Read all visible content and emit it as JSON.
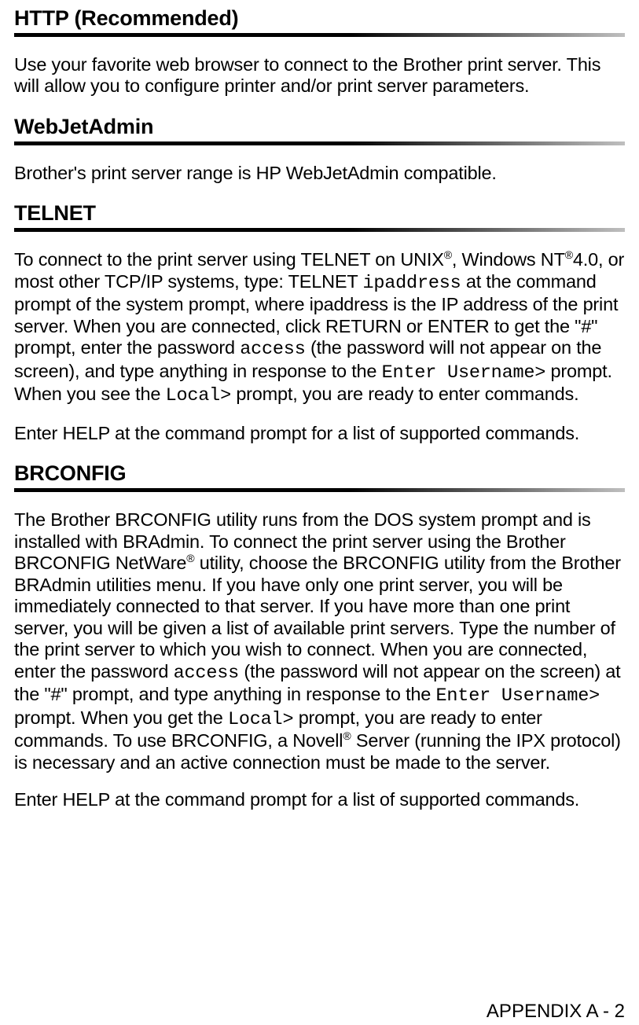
{
  "sections": {
    "http": {
      "heading": "HTTP (Recommended)",
      "p1": "Use your favorite web browser to connect to the Brother print server. This will allow you to configure printer and/or print server parameters."
    },
    "webjet": {
      "heading": "WebJetAdmin",
      "p1": "Brother's print server range is HP WebJetAdmin compatible."
    },
    "telnet": {
      "heading": "TELNET",
      "p1_a": "To connect to the print server using TELNET on UNIX",
      "p1_b": ", Windows NT",
      "p1_c": "4.0, or most other TCP/IP systems, type: TELNET ",
      "p1_code1": "ipaddress",
      "p1_d": " at the command prompt of the system prompt, where ipaddress is the IP address of the print server. When you are connected, click RETURN or ENTER to get the \"#\" prompt, enter the password ",
      "p1_code2": "access",
      "p1_e": " (the password will not appear on the screen), and type anything in response to the ",
      "p1_code3": "Enter Username>",
      "p1_f": " prompt. When you see the ",
      "p1_code4": "Local>",
      "p1_g": " prompt, you are ready to enter commands.",
      "p2": "Enter HELP at the command prompt for a list of supported commands."
    },
    "brconfig": {
      "heading": "BRCONFIG",
      "p1_a": "The Brother BRCONFIG utility runs from the DOS system prompt and is installed with BRAdmin. To connect the print server using the Brother BRCONFIG NetWare",
      "p1_b": " utility, choose the BRCONFIG utility from the Brother BRAdmin utilities menu. If you have only one print server, you will be immediately connected to that server. If you have more than one print server, you will be given a list of available print servers. Type the number of the print server to which you wish to connect. When you are connected, enter the password ",
      "p1_code1": "access",
      "p1_c": " (the password will not appear on the screen) at the \"#\" prompt, and type anything in response to the ",
      "p1_code2": "Enter Username>",
      "p1_d": " prompt. When you get the ",
      "p1_code3": "Local>",
      "p1_e": " prompt, you are ready to enter commands. To use BRCONFIG, a Novell",
      "p1_f": " Server (running the IPX protocol) is necessary and an active connection must be made to the server.",
      "p2": "Enter HELP at the command prompt for a list of supported commands."
    }
  },
  "reg": "®",
  "footer": "APPENDIX A - 2"
}
